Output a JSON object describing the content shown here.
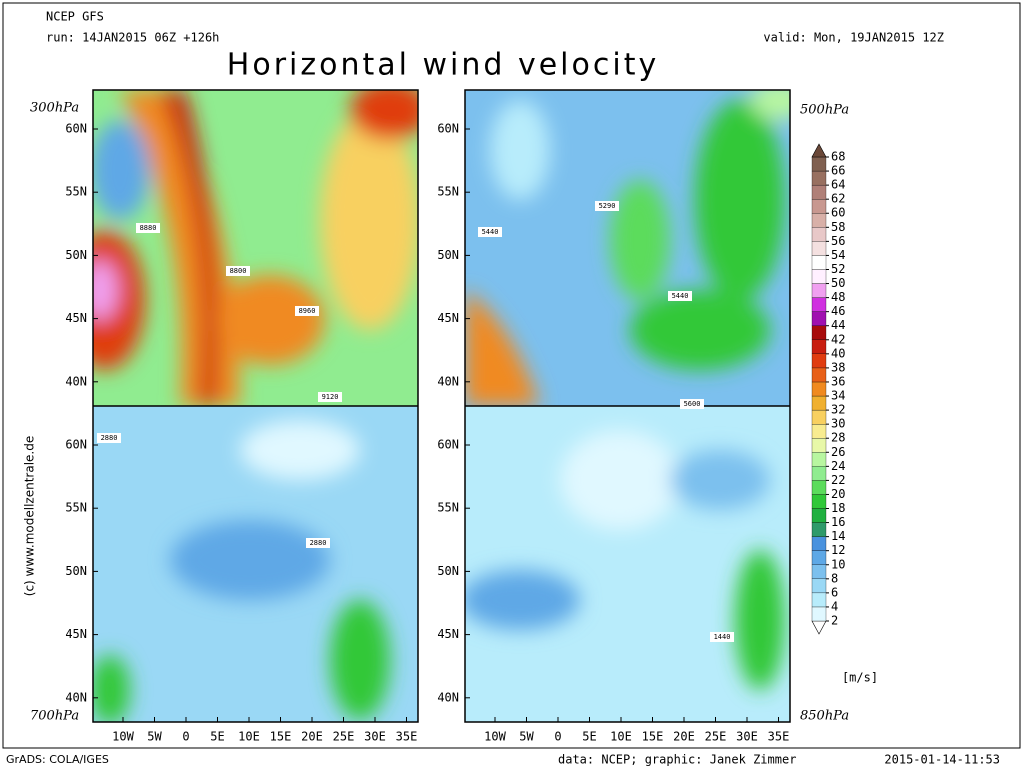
{
  "header": {
    "model": "NCEP GFS",
    "run": "run: 14JAN2015 06Z +126h",
    "valid": "valid: Mon, 19JAN2015 12Z",
    "title": "Horizontal wind velocity"
  },
  "panels": [
    {
      "level": "300hPa",
      "contour_labels": [
        "8880",
        "8800",
        "8960",
        "9120"
      ]
    },
    {
      "level": "500hPa",
      "contour_labels": [
        "5440",
        "5290",
        "5440",
        "5600"
      ]
    },
    {
      "level": "700hPa",
      "contour_labels": [
        "2880",
        "2880"
      ]
    },
    {
      "level": "850hPa",
      "contour_labels": [
        "1440"
      ]
    }
  ],
  "lat_labels": [
    "60N",
    "55N",
    "50N",
    "45N",
    "40N"
  ],
  "lon_labels": [
    "10W",
    "5W",
    "0",
    "5E",
    "10E",
    "15E",
    "20E",
    "25E",
    "30E",
    "35E"
  ],
  "colorbar": {
    "levels": [
      2,
      4,
      6,
      8,
      10,
      12,
      14,
      16,
      18,
      20,
      22,
      24,
      26,
      28,
      30,
      32,
      34,
      36,
      38,
      40,
      42,
      44,
      46,
      48,
      50,
      52,
      54,
      56,
      58,
      60,
      62,
      64,
      66,
      68
    ],
    "colors": [
      "#ffffff",
      "#e0f8ff",
      "#b8ecfb",
      "#9ad8f5",
      "#7cc0ee",
      "#5ea8e6",
      "#4a92de",
      "#2e9a6a",
      "#20b040",
      "#30c838",
      "#5cdc5c",
      "#90ec90",
      "#b8f6a0",
      "#e8f8a8",
      "#f8ec90",
      "#f8d060",
      "#f0b030",
      "#f08a20",
      "#e86018",
      "#e03c10",
      "#c81e10",
      "#a80c0c",
      "#a010b0",
      "#d030e0",
      "#f0a0f0",
      "#fff0ff",
      "#ffffff",
      "#f4e0e0",
      "#e8c8c8",
      "#d8b0a8",
      "#c89890",
      "#b08078",
      "#987060",
      "#806050",
      "#6a4838"
    ],
    "unit": "[m/s]"
  },
  "footer": {
    "copyright": "(c) www.modellzentrale.de",
    "software": "GrADS: COLA/IGES",
    "credits": "data: NCEP; graphic: Janek Zimmer",
    "timestamp": "2015-01-14-11:53"
  }
}
